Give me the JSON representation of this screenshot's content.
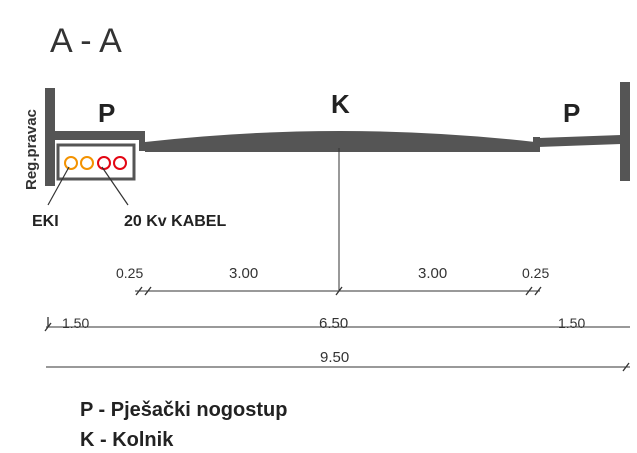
{
  "title": "A - A",
  "side_label": "Reg.pravac",
  "lanes": {
    "left": "P",
    "center": "K",
    "right": "P"
  },
  "cables": {
    "eki": "EKI",
    "kv": "20 Kv KABEL"
  },
  "dimensions": {
    "row1": [
      "0.25",
      "3.00",
      "3.00",
      "0.25"
    ],
    "row2": [
      "1.50",
      "6.50",
      "1.50"
    ],
    "row3": "9.50"
  },
  "legend": [
    "P - Pješački nogostup",
    "K - Kolnik"
  ],
  "colors": {
    "structure": "#555555",
    "cable_orange": "#f39200",
    "cable_red": "#e30613"
  }
}
